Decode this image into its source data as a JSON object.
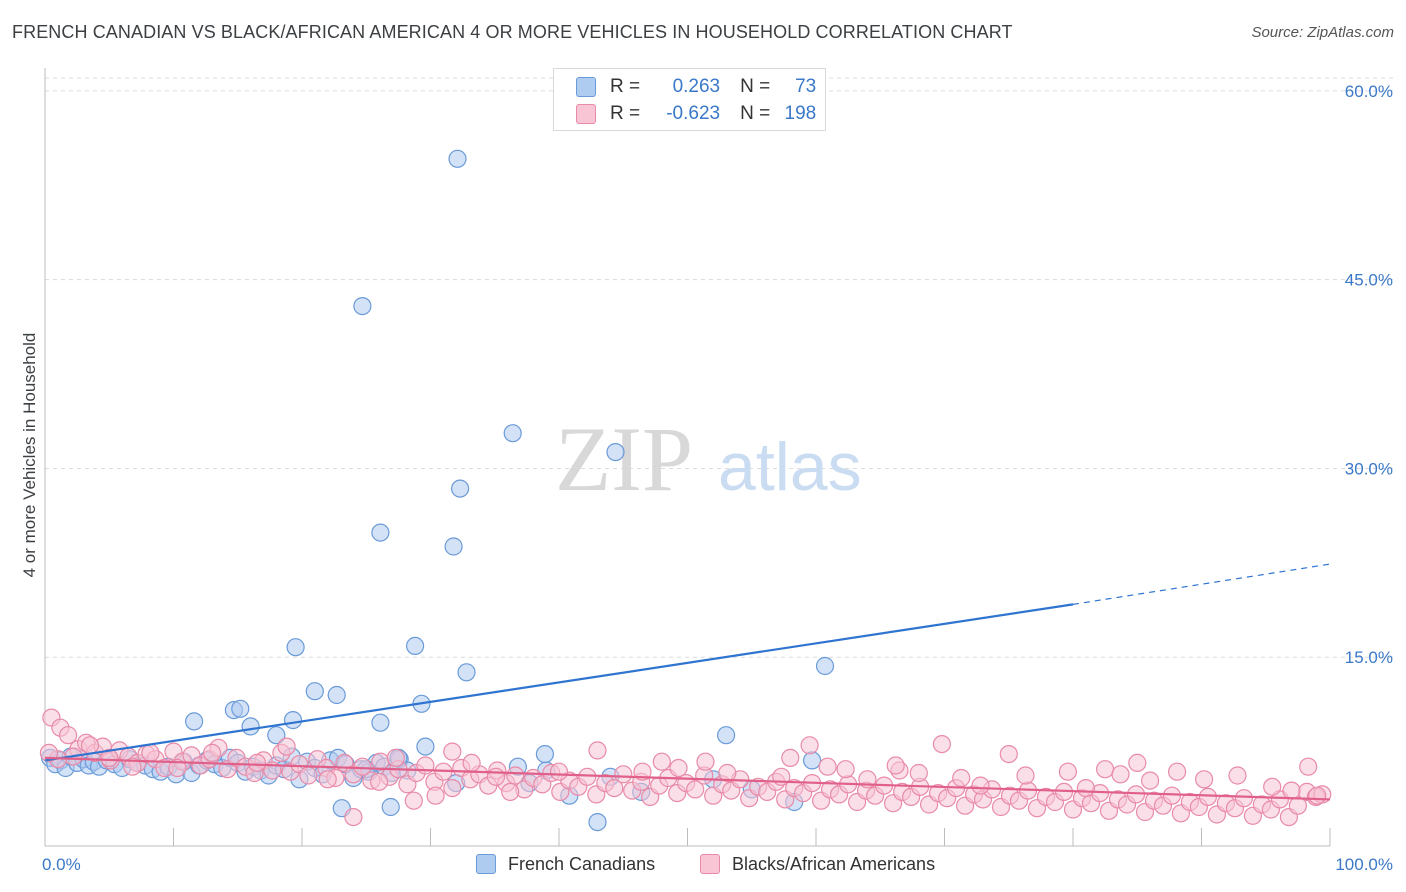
{
  "title": "FRENCH CANADIAN VS BLACK/AFRICAN AMERICAN 4 OR MORE VEHICLES IN HOUSEHOLD CORRELATION CHART",
  "source": "Source: ZipAtlas.com",
  "watermark": {
    "zip": "ZIP",
    "atlas": "atlas"
  },
  "legend_top": {
    "rows": [
      {
        "r_label": "R =",
        "r_value": "0.263",
        "n_label": "N =",
        "n_value": "73",
        "color": "#aecbf0",
        "border": "#6a9bd8"
      },
      {
        "r_label": "R =",
        "r_value": "-0.623",
        "n_label": "N =",
        "n_value": "198",
        "color": "#f8c5d5",
        "border": "#e88aa8"
      }
    ]
  },
  "legend_bottom": [
    {
      "label": "French Canadians",
      "color": "#aecbf0",
      "border": "#6a9bd8"
    },
    {
      "label": "Blacks/African Americans",
      "color": "#f8c5d5",
      "border": "#e88aa8"
    }
  ],
  "chart_data": {
    "type": "scatter",
    "title": "FRENCH CANADIAN VS BLACK/AFRICAN AMERICAN 4 OR MORE VEHICLES IN HOUSEHOLD CORRELATION CHART",
    "xlabel": "",
    "ylabel": "4 or more Vehicles in Household",
    "xlim": [
      0,
      100
    ],
    "ylim": [
      0,
      61.5
    ],
    "x_tick_labels": [
      "0.0%",
      "100.0%"
    ],
    "y_ticks": [
      15,
      30,
      45,
      60
    ],
    "y_tick_labels": [
      "15.0%",
      "30.0%",
      "45.0%",
      "60.0%"
    ],
    "grid": "dashed horizontal",
    "series": [
      {
        "name": "French Canadians",
        "color": "#6a9bd8",
        "fill": "#aecbf0",
        "trend": {
          "x0": 0,
          "y0": 6.8,
          "x1": 80,
          "y1": 19.2,
          "dash_to_x": 100,
          "dash_to_y": 22.4,
          "color": "#2f74d0"
        },
        "points": [
          [
            0.4,
            7.0
          ],
          [
            0.8,
            6.5
          ],
          [
            1.2,
            6.8
          ],
          [
            1.6,
            6.2
          ],
          [
            2.0,
            7.1
          ],
          [
            2.5,
            6.6
          ],
          [
            3.0,
            6.9
          ],
          [
            3.4,
            6.4
          ],
          [
            3.8,
            6.7
          ],
          [
            4.2,
            6.3
          ],
          [
            4.8,
            6.8
          ],
          [
            5.4,
            6.5
          ],
          [
            6.0,
            6.2
          ],
          [
            6.6,
            6.9
          ],
          [
            7.2,
            6.6
          ],
          [
            7.8,
            6.4
          ],
          [
            8.4,
            6.1
          ],
          [
            9.0,
            5.9
          ],
          [
            9.6,
            6.3
          ],
          [
            10.2,
            5.7
          ],
          [
            10.8,
            6.7
          ],
          [
            11.4,
            5.8
          ],
          [
            12.0,
            6.4
          ],
          [
            12.6,
            6.8
          ],
          [
            13.2,
            6.5
          ],
          [
            13.8,
            6.2
          ],
          [
            14.4,
            7.0
          ],
          [
            15.0,
            6.6
          ],
          [
            15.6,
            5.9
          ],
          [
            16.2,
            6.3
          ],
          [
            16.8,
            6.0
          ],
          [
            17.4,
            5.6
          ],
          [
            18.0,
            6.4
          ],
          [
            18.6,
            6.1
          ],
          [
            19.2,
            7.1
          ],
          [
            19.8,
            5.3
          ],
          [
            20.4,
            6.7
          ],
          [
            21.0,
            6.2
          ],
          [
            21.6,
            5.7
          ],
          [
            22.2,
            6.8
          ],
          [
            22.8,
            7.0
          ],
          [
            23.4,
            6.5
          ],
          [
            24.0,
            5.4
          ],
          [
            24.6,
            6.1
          ],
          [
            25.2,
            5.9
          ],
          [
            25.8,
            6.6
          ],
          [
            26.4,
            6.3
          ],
          [
            27.0,
            5.8
          ],
          [
            27.6,
            6.9
          ],
          [
            28.2,
            6.0
          ],
          [
            14.7,
            10.8
          ],
          [
            11.6,
            9.9
          ],
          [
            15.2,
            10.9
          ],
          [
            16.0,
            9.5
          ],
          [
            18.0,
            8.8
          ],
          [
            19.3,
            10.0
          ],
          [
            19.5,
            15.8
          ],
          [
            21.0,
            12.3
          ],
          [
            22.7,
            12.0
          ],
          [
            26.1,
            9.8
          ],
          [
            28.8,
            15.9
          ],
          [
            29.3,
            11.3
          ],
          [
            32.8,
            13.8
          ],
          [
            24.7,
            42.9
          ],
          [
            26.1,
            24.9
          ],
          [
            32.1,
            54.6
          ],
          [
            31.8,
            23.8
          ],
          [
            32.3,
            28.4
          ],
          [
            36.4,
            32.8
          ],
          [
            44.4,
            31.3
          ],
          [
            53.0,
            8.8
          ],
          [
            59.7,
            6.8
          ],
          [
            60.7,
            14.3
          ],
          [
            46.4,
            4.3
          ],
          [
            40.8,
            4.0
          ],
          [
            37.7,
            5.0
          ],
          [
            58.3,
            3.5
          ],
          [
            23.1,
            3.0
          ],
          [
            26.9,
            3.1
          ],
          [
            32.0,
            5.0
          ],
          [
            36.8,
            6.3
          ],
          [
            39.0,
            6.0
          ],
          [
            43.0,
            1.9
          ],
          [
            52.0,
            5.3
          ],
          [
            55.0,
            4.5
          ],
          [
            29.6,
            7.9
          ],
          [
            25.0,
            6.1
          ],
          [
            27.5,
            7.0
          ],
          [
            38.9,
            7.3
          ],
          [
            44.0,
            5.5
          ]
        ]
      },
      {
        "name": "Blacks/African Americans",
        "color": "#e88aa8",
        "fill": "#f8c5d5",
        "trend": {
          "x0": 0,
          "y0": 7.0,
          "x1": 100,
          "y1": 3.7,
          "color": "#e0608a"
        },
        "points": [
          [
            0.5,
            10.2
          ],
          [
            1.2,
            9.4
          ],
          [
            1.8,
            8.8
          ],
          [
            2.6,
            7.7
          ],
          [
            3.2,
            8.2
          ],
          [
            3.9,
            7.4
          ],
          [
            4.5,
            7.9
          ],
          [
            5.1,
            6.8
          ],
          [
            5.8,
            7.6
          ],
          [
            6.5,
            7.1
          ],
          [
            7.2,
            6.6
          ],
          [
            7.9,
            7.3
          ],
          [
            8.6,
            6.9
          ],
          [
            9.3,
            6.2
          ],
          [
            10.0,
            7.5
          ],
          [
            10.7,
            6.7
          ],
          [
            11.4,
            7.2
          ],
          [
            12.1,
            6.4
          ],
          [
            12.8,
            6.9
          ],
          [
            13.5,
            7.8
          ],
          [
            14.2,
            6.1
          ],
          [
            14.9,
            7.0
          ],
          [
            15.6,
            6.3
          ],
          [
            16.3,
            5.8
          ],
          [
            17.0,
            6.8
          ],
          [
            17.7,
            6.0
          ],
          [
            18.4,
            7.4
          ],
          [
            19.1,
            5.9
          ],
          [
            19.8,
            6.5
          ],
          [
            20.5,
            5.6
          ],
          [
            21.2,
            6.9
          ],
          [
            21.9,
            6.2
          ],
          [
            22.6,
            5.4
          ],
          [
            23.3,
            6.6
          ],
          [
            24.0,
            5.7
          ],
          [
            24.7,
            6.3
          ],
          [
            25.4,
            5.2
          ],
          [
            26.1,
            6.7
          ],
          [
            26.8,
            5.5
          ],
          [
            27.5,
            6.1
          ],
          [
            28.2,
            4.9
          ],
          [
            28.9,
            5.8
          ],
          [
            29.6,
            6.4
          ],
          [
            30.3,
            5.1
          ],
          [
            31.0,
            5.9
          ],
          [
            31.7,
            4.6
          ],
          [
            32.4,
            6.2
          ],
          [
            33.1,
            5.3
          ],
          [
            33.8,
            5.7
          ],
          [
            34.5,
            4.8
          ],
          [
            35.2,
            6.0
          ],
          [
            35.9,
            5.0
          ],
          [
            36.6,
            5.6
          ],
          [
            37.3,
            4.5
          ],
          [
            38.0,
            5.4
          ],
          [
            38.7,
            4.9
          ],
          [
            39.4,
            5.8
          ],
          [
            40.1,
            4.3
          ],
          [
            40.8,
            5.2
          ],
          [
            41.5,
            4.7
          ],
          [
            42.2,
            5.5
          ],
          [
            42.9,
            4.1
          ],
          [
            43.6,
            5.0
          ],
          [
            44.3,
            4.6
          ],
          [
            45.0,
            5.7
          ],
          [
            45.7,
            4.4
          ],
          [
            46.4,
            5.1
          ],
          [
            47.1,
            3.9
          ],
          [
            47.8,
            4.8
          ],
          [
            48.5,
            5.4
          ],
          [
            49.2,
            4.2
          ],
          [
            49.9,
            5.0
          ],
          [
            50.6,
            4.5
          ],
          [
            51.3,
            5.6
          ],
          [
            52.0,
            4.0
          ],
          [
            52.7,
            4.9
          ],
          [
            53.4,
            4.4
          ],
          [
            54.1,
            5.3
          ],
          [
            54.8,
            3.8
          ],
          [
            55.5,
            4.7
          ],
          [
            56.2,
            4.3
          ],
          [
            56.9,
            5.1
          ],
          [
            57.6,
            3.7
          ],
          [
            58.3,
            4.6
          ],
          [
            59.0,
            4.2
          ],
          [
            59.7,
            5.0
          ],
          [
            60.4,
            3.6
          ],
          [
            61.1,
            4.5
          ],
          [
            61.8,
            4.1
          ],
          [
            62.5,
            4.9
          ],
          [
            63.2,
            3.5
          ],
          [
            63.9,
            4.4
          ],
          [
            64.6,
            4.0
          ],
          [
            65.3,
            4.8
          ],
          [
            66.0,
            3.4
          ],
          [
            66.7,
            4.3
          ],
          [
            67.4,
            3.9
          ],
          [
            68.1,
            4.7
          ],
          [
            68.8,
            3.3
          ],
          [
            69.5,
            4.2
          ],
          [
            70.2,
            3.8
          ],
          [
            70.9,
            4.6
          ],
          [
            71.6,
            3.2
          ],
          [
            72.3,
            4.1
          ],
          [
            73.0,
            3.7
          ],
          [
            73.7,
            4.5
          ],
          [
            74.4,
            3.1
          ],
          [
            75.1,
            4.0
          ],
          [
            75.8,
            3.6
          ],
          [
            76.5,
            4.4
          ],
          [
            77.2,
            3.0
          ],
          [
            77.9,
            3.9
          ],
          [
            78.6,
            3.5
          ],
          [
            79.3,
            4.3
          ],
          [
            80.0,
            2.9
          ],
          [
            80.7,
            3.8
          ],
          [
            81.4,
            3.4
          ],
          [
            82.1,
            4.2
          ],
          [
            82.8,
            2.8
          ],
          [
            83.5,
            3.7
          ],
          [
            84.2,
            3.3
          ],
          [
            84.9,
            4.1
          ],
          [
            85.6,
            2.7
          ],
          [
            86.3,
            3.6
          ],
          [
            87.0,
            3.2
          ],
          [
            87.7,
            4.0
          ],
          [
            88.4,
            2.6
          ],
          [
            89.1,
            3.5
          ],
          [
            89.8,
            3.1
          ],
          [
            90.5,
            3.9
          ],
          [
            91.2,
            2.5
          ],
          [
            91.9,
            3.4
          ],
          [
            92.6,
            3.0
          ],
          [
            93.3,
            3.8
          ],
          [
            94.0,
            2.4
          ],
          [
            94.7,
            3.3
          ],
          [
            95.4,
            2.9
          ],
          [
            96.1,
            3.7
          ],
          [
            96.8,
            2.3
          ],
          [
            97.5,
            3.2
          ],
          [
            98.2,
            4.3
          ],
          [
            98.9,
            3.9
          ],
          [
            99.4,
            4.1
          ],
          [
            75.0,
            7.3
          ],
          [
            85.0,
            6.6
          ],
          [
            98.3,
            6.3
          ],
          [
            82.5,
            6.1
          ],
          [
            69.8,
            8.1
          ],
          [
            59.5,
            8.0
          ],
          [
            51.4,
            6.7
          ],
          [
            31.7,
            7.5
          ],
          [
            24.0,
            2.3
          ],
          [
            27.3,
            7.0
          ],
          [
            35.1,
            5.5
          ],
          [
            43.0,
            7.6
          ],
          [
            48.0,
            6.7
          ],
          [
            53.1,
            5.8
          ],
          [
            57.3,
            5.5
          ],
          [
            62.3,
            6.1
          ],
          [
            64.0,
            5.3
          ],
          [
            66.5,
            6.0
          ],
          [
            68.0,
            5.8
          ],
          [
            71.3,
            5.4
          ],
          [
            72.8,
            4.8
          ],
          [
            76.3,
            5.6
          ],
          [
            79.6,
            5.9
          ],
          [
            81.0,
            4.6
          ],
          [
            83.7,
            5.7
          ],
          [
            86.0,
            5.2
          ],
          [
            88.1,
            5.9
          ],
          [
            90.2,
            5.3
          ],
          [
            92.8,
            5.6
          ],
          [
            95.5,
            4.7
          ],
          [
            97.0,
            4.4
          ],
          [
            99.0,
            4.0
          ],
          [
            58.0,
            7.0
          ],
          [
            60.9,
            6.3
          ],
          [
            66.2,
            6.4
          ],
          [
            46.5,
            5.9
          ],
          [
            49.3,
            6.2
          ],
          [
            40.0,
            5.9
          ],
          [
            36.2,
            4.3
          ],
          [
            33.2,
            6.6
          ],
          [
            30.4,
            4.0
          ],
          [
            28.7,
            3.6
          ],
          [
            26.0,
            5.1
          ],
          [
            22.0,
            5.3
          ],
          [
            18.8,
            7.9
          ],
          [
            16.5,
            6.6
          ],
          [
            13.0,
            7.4
          ],
          [
            10.3,
            6.2
          ],
          [
            8.2,
            7.4
          ],
          [
            6.8,
            6.3
          ],
          [
            5.0,
            7.0
          ],
          [
            3.5,
            8.0
          ],
          [
            2.2,
            7.1
          ],
          [
            1.0,
            6.9
          ],
          [
            0.3,
            7.4
          ]
        ]
      }
    ]
  }
}
